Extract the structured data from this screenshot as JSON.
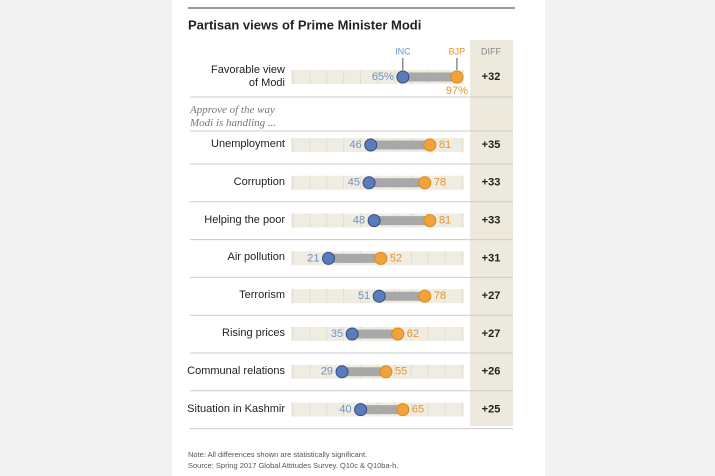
{
  "chart_data": {
    "type": "dumbbell",
    "title": "Partisan views of Prime Minister Modi",
    "subtitle": "Approve of the way Modi is handling ...",
    "categories": [
      "Favorable view of Modi",
      "Unemployment",
      "Corruption",
      "Helping the poor",
      "Air pollution",
      "Terrorism",
      "Rising prices",
      "Communal relations",
      "Situation in Kashmir"
    ],
    "series": [
      {
        "name": "INC",
        "color": "#5b7cba",
        "text_color": "#6f8fc6",
        "values": [
          65,
          46,
          45,
          48,
          21,
          51,
          35,
          29,
          40
        ],
        "value_labels": [
          "65%",
          "46",
          "45",
          "48",
          "21",
          "51",
          "35",
          "29",
          "40"
        ]
      },
      {
        "name": "BJP",
        "color": "#f2a23a",
        "text_color": "#e8922c",
        "values": [
          97,
          81,
          78,
          81,
          52,
          78,
          62,
          55,
          65
        ],
        "value_labels": [
          "97%",
          "81",
          "78",
          "81",
          "52",
          "78",
          "62",
          "55",
          "65"
        ]
      }
    ],
    "diff": {
      "header": "DIFF",
      "values": [
        32,
        35,
        33,
        33,
        31,
        27,
        27,
        26,
        25
      ],
      "value_labels": [
        "+32",
        "+35",
        "+33",
        "+33",
        "+31",
        "+27",
        "+27",
        "+26",
        "+25"
      ]
    },
    "xlim": [
      0,
      100
    ],
    "xticks": [
      0,
      10,
      20,
      30,
      40,
      50,
      60,
      70,
      80,
      90,
      100
    ],
    "grid": true,
    "notes": [
      "Note: All differences shown are statistically significant.",
      "Source: Spring 2017 Global Attitudes Survey. Q10c & Q10ba-h."
    ]
  }
}
